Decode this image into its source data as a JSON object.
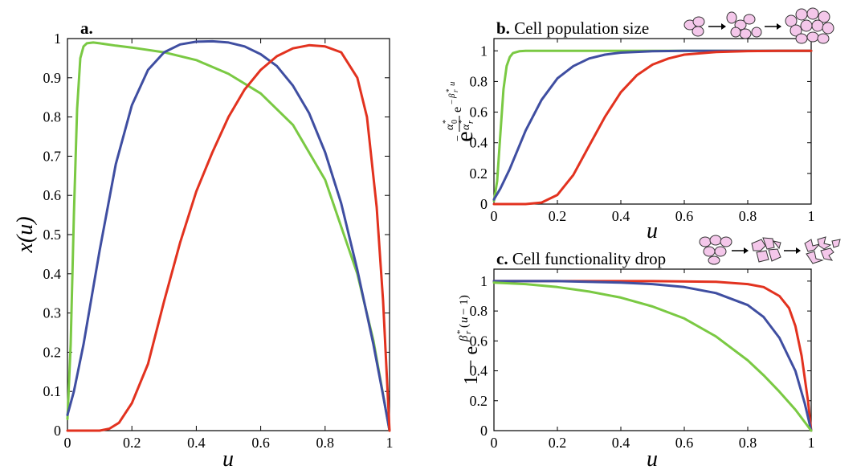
{
  "chart_data": [
    {
      "panel": "a.",
      "type": "line",
      "title": "",
      "xlabel": "u",
      "ylabel": "x(u)",
      "xlim": [
        0,
        1
      ],
      "ylim": [
        0,
        1
      ],
      "xticks": [
        "0",
        "0.2",
        "0.4",
        "0.6",
        "0.8",
        "1"
      ],
      "yticks": [
        "0",
        "0.1",
        "0.2",
        "0.3",
        "0.4",
        "0.5",
        "0.6",
        "0.7",
        "0.8",
        "0.9",
        "1"
      ],
      "grid": false,
      "series": [
        {
          "color": "#7ac943",
          "x": [
            0,
            0.01,
            0.02,
            0.03,
            0.04,
            0.05,
            0.06,
            0.08,
            0.1,
            0.15,
            0.2,
            0.3,
            0.4,
            0.5,
            0.6,
            0.7,
            0.8,
            0.9,
            0.95,
            1.0
          ],
          "y": [
            0.03,
            0.22,
            0.55,
            0.82,
            0.95,
            0.98,
            0.988,
            0.99,
            0.988,
            0.982,
            0.977,
            0.965,
            0.945,
            0.91,
            0.86,
            0.78,
            0.64,
            0.4,
            0.23,
            0.0
          ]
        },
        {
          "color": "#3f4ea1",
          "x": [
            0,
            0.02,
            0.05,
            0.1,
            0.15,
            0.2,
            0.25,
            0.3,
            0.35,
            0.4,
            0.45,
            0.5,
            0.55,
            0.6,
            0.65,
            0.7,
            0.75,
            0.8,
            0.85,
            0.9,
            0.95,
            0.98,
            1.0
          ],
          "y": [
            0.04,
            0.1,
            0.22,
            0.46,
            0.68,
            0.83,
            0.92,
            0.965,
            0.985,
            0.992,
            0.993,
            0.99,
            0.98,
            0.96,
            0.93,
            0.88,
            0.81,
            0.71,
            0.58,
            0.41,
            0.22,
            0.09,
            0.0
          ]
        },
        {
          "color": "#e2321f",
          "x": [
            0,
            0.1,
            0.13,
            0.16,
            0.2,
            0.25,
            0.3,
            0.35,
            0.4,
            0.45,
            0.5,
            0.55,
            0.6,
            0.65,
            0.7,
            0.75,
            0.8,
            0.85,
            0.9,
            0.93,
            0.96,
            0.98,
            1.0
          ],
          "y": [
            0.0,
            0.0,
            0.005,
            0.02,
            0.07,
            0.17,
            0.33,
            0.48,
            0.61,
            0.71,
            0.8,
            0.87,
            0.92,
            0.955,
            0.975,
            0.983,
            0.98,
            0.965,
            0.9,
            0.8,
            0.57,
            0.33,
            0.0
          ]
        }
      ]
    },
    {
      "panel": "b.",
      "type": "line",
      "title": "Cell population size",
      "xlabel": "u",
      "ylabel": "e^(−(α0*/αr*) e^(−βr* u))",
      "xlim": [
        0,
        1
      ],
      "ylim": [
        0,
        1.08
      ],
      "xticks": [
        "0",
        "0.2",
        "0.4",
        "0.6",
        "0.8",
        "1"
      ],
      "yticks": [
        "0",
        "0.2",
        "0.4",
        "0.6",
        "0.8",
        "1"
      ],
      "grid": false,
      "series": [
        {
          "color": "#7ac943",
          "x": [
            0,
            0.01,
            0.02,
            0.03,
            0.04,
            0.05,
            0.06,
            0.08,
            0.1,
            0.2,
            0.4,
            0.6,
            0.8,
            1.0
          ],
          "y": [
            0.02,
            0.15,
            0.45,
            0.75,
            0.9,
            0.96,
            0.985,
            0.997,
            1.0,
            1.0,
            1.0,
            1.0,
            1.0,
            1.0
          ]
        },
        {
          "color": "#3f4ea1",
          "x": [
            0,
            0.02,
            0.05,
            0.1,
            0.15,
            0.2,
            0.25,
            0.3,
            0.35,
            0.4,
            0.5,
            0.6,
            0.8,
            1.0
          ],
          "y": [
            0.03,
            0.1,
            0.23,
            0.48,
            0.68,
            0.82,
            0.9,
            0.95,
            0.975,
            0.988,
            0.997,
            1.0,
            1.0,
            1.0
          ]
        },
        {
          "color": "#e2321f",
          "x": [
            0,
            0.1,
            0.15,
            0.2,
            0.25,
            0.3,
            0.35,
            0.4,
            0.45,
            0.5,
            0.55,
            0.6,
            0.7,
            0.8,
            0.9,
            1.0
          ],
          "y": [
            0.0,
            0.0,
            0.01,
            0.06,
            0.19,
            0.38,
            0.57,
            0.73,
            0.84,
            0.91,
            0.95,
            0.975,
            0.992,
            0.998,
            1.0,
            1.0
          ]
        }
      ]
    },
    {
      "panel": "c.",
      "type": "line",
      "title": "Cell functionality drop",
      "xlabel": "u",
      "ylabel": "1 − e^(βr*(u − 1))",
      "xlim": [
        0,
        1
      ],
      "ylim": [
        0,
        1.08
      ],
      "xticks": [
        "0",
        "0.2",
        "0.4",
        "0.6",
        "0.8",
        "1"
      ],
      "yticks": [
        "0",
        "0.2",
        "0.4",
        "0.6",
        "0.8",
        "1"
      ],
      "grid": false,
      "series": [
        {
          "color": "#e2321f",
          "x": [
            0,
            0.5,
            0.7,
            0.8,
            0.85,
            0.9,
            0.93,
            0.95,
            0.97,
            0.99,
            1.0
          ],
          "y": [
            1.0,
            1.0,
            0.995,
            0.98,
            0.96,
            0.9,
            0.82,
            0.7,
            0.5,
            0.2,
            0.0
          ]
        },
        {
          "color": "#3f4ea1",
          "x": [
            0,
            0.2,
            0.4,
            0.5,
            0.6,
            0.7,
            0.8,
            0.85,
            0.9,
            0.95,
            0.98,
            1.0
          ],
          "y": [
            1.0,
            1.0,
            0.99,
            0.98,
            0.96,
            0.92,
            0.84,
            0.76,
            0.62,
            0.4,
            0.18,
            0.0
          ]
        },
        {
          "color": "#7ac943",
          "x": [
            0,
            0.1,
            0.2,
            0.3,
            0.4,
            0.5,
            0.6,
            0.7,
            0.8,
            0.85,
            0.9,
            0.95,
            1.0
          ],
          "y": [
            0.99,
            0.98,
            0.96,
            0.93,
            0.89,
            0.83,
            0.75,
            0.63,
            0.47,
            0.37,
            0.26,
            0.14,
            0.0
          ]
        }
      ]
    }
  ]
}
